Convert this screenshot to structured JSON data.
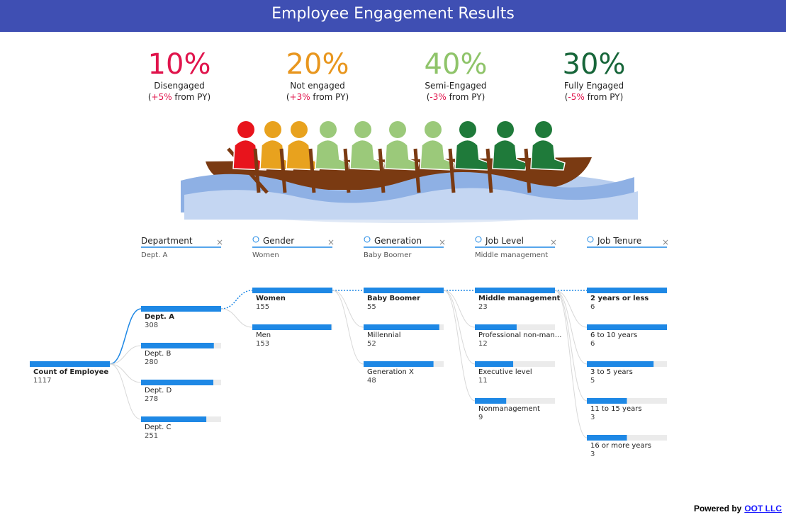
{
  "header": {
    "title": "Employee Engagement Results"
  },
  "kpis": [
    {
      "value": "10%",
      "label": "Disengaged",
      "color": "#e0144c",
      "change": {
        "open": "(",
        "delta": "+5%",
        "rest": " from PY)",
        "color": "#e0144c"
      }
    },
    {
      "value": "20%",
      "label": "Not engaged",
      "color": "#e8961e",
      "change": {
        "open": "(",
        "delta": "+3%",
        "rest": " from PY)",
        "color": "#e0144c"
      }
    },
    {
      "value": "40%",
      "label": "Semi-Engaged",
      "color": "#8fc46a",
      "change": {
        "open": "(",
        "delta": "-3%",
        "rest": " from PY)",
        "color": "#e0144c"
      }
    },
    {
      "value": "30%",
      "label": "Fully Engaged",
      "color": "#17663a",
      "change": {
        "open": "(",
        "delta": "-5%",
        "rest": " from PY)",
        "color": "#e0144c"
      }
    }
  ],
  "tree": {
    "root": {
      "label": "Count of Employee",
      "value": 1117
    },
    "levels": [
      {
        "field": "Department",
        "filter": "Dept. A",
        "nodes": [
          {
            "label": "Dept. A",
            "value": 308
          },
          {
            "label": "Dept. B",
            "value": 280
          },
          {
            "label": "Dept. D",
            "value": 278
          },
          {
            "label": "Dept. C",
            "value": 251
          }
        ]
      },
      {
        "field": "Gender",
        "filter": "Women",
        "nodes": [
          {
            "label": "Women",
            "value": 155
          },
          {
            "label": "Men",
            "value": 153
          }
        ]
      },
      {
        "field": "Generation",
        "filter": "Baby Boomer",
        "nodes": [
          {
            "label": "Baby Boomer",
            "value": 55
          },
          {
            "label": "Millennial",
            "value": 52
          },
          {
            "label": "Generation X",
            "value": 48
          }
        ]
      },
      {
        "field": "Job Level",
        "filter": "Middle management",
        "nodes": [
          {
            "label": "Middle management",
            "value": 23
          },
          {
            "label": "Professional non-man...",
            "value": 12
          },
          {
            "label": "Executive level",
            "value": 11
          },
          {
            "label": "Nonmanagement",
            "value": 9
          }
        ]
      },
      {
        "field": "Job Tenure",
        "nodes": [
          {
            "label": "2 years or less",
            "value": 6
          },
          {
            "label": "6 to 10 years",
            "value": 6
          },
          {
            "label": "3 to 5 years",
            "value": 5
          },
          {
            "label": "11 to 15 years",
            "value": 3
          },
          {
            "label": "16 or more years",
            "value": 3
          }
        ]
      }
    ]
  },
  "footer": {
    "text": "Powered by",
    "link": "OOT LLC"
  }
}
